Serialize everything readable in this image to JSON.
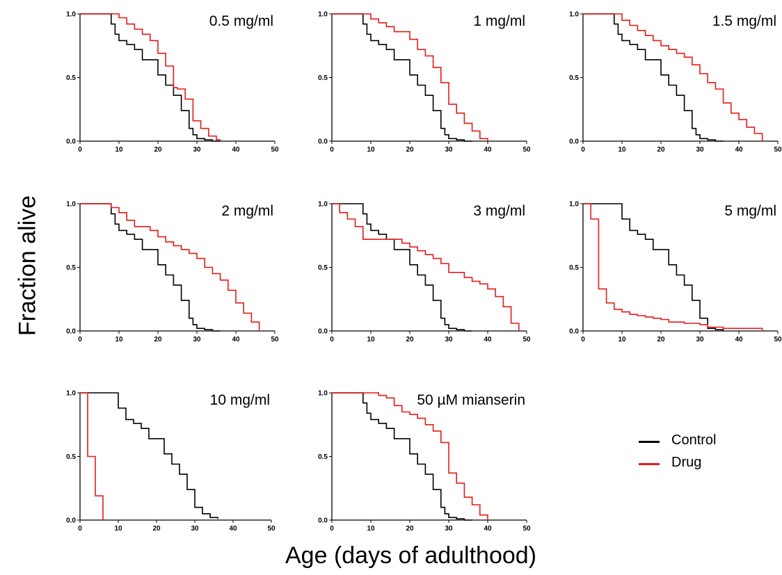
{
  "colors": {
    "control": "#000000",
    "drug": "#e41a1c"
  },
  "axes": {
    "ylabel": "Fraction alive",
    "xlabel": "Age (days of adulthood)",
    "xticks": [
      0,
      10,
      20,
      30,
      40,
      50
    ],
    "yticks": [
      "0.0",
      "0.5",
      "1.0"
    ],
    "xlim": [
      0,
      50
    ],
    "ylim": [
      0,
      1
    ]
  },
  "legend": {
    "placement": "right, beside bottom row",
    "items": [
      {
        "key": "control",
        "label": "Control"
      },
      {
        "key": "drug",
        "label": "Drug"
      }
    ]
  },
  "chart_data": [
    {
      "type": "line",
      "title": "0.5 mg/ml",
      "series": [
        {
          "name": "Control",
          "x": [
            0,
            8,
            9,
            10,
            12,
            14,
            16,
            18,
            20,
            22,
            24,
            26,
            28,
            29,
            30,
            32,
            34,
            36
          ],
          "y": [
            1.0,
            0.92,
            0.84,
            0.79,
            0.76,
            0.72,
            0.64,
            0.64,
            0.52,
            0.44,
            0.36,
            0.24,
            0.1,
            0.05,
            0.02,
            0.01,
            0.0,
            0.0
          ]
        },
        {
          "name": "Drug",
          "x": [
            0,
            10,
            12,
            14,
            16,
            18,
            20,
            22,
            24,
            25,
            27,
            29,
            31,
            33,
            35,
            36
          ],
          "y": [
            1.0,
            0.97,
            0.92,
            0.88,
            0.84,
            0.79,
            0.69,
            0.59,
            0.42,
            0.41,
            0.33,
            0.16,
            0.1,
            0.04,
            0.01,
            0.0
          ]
        }
      ]
    },
    {
      "type": "line",
      "title": "1 mg/ml",
      "series": [
        {
          "name": "Control",
          "x": [
            0,
            8,
            9,
            10,
            12,
            14,
            16,
            18,
            20,
            22,
            24,
            26,
            28,
            29,
            30,
            32,
            34,
            36
          ],
          "y": [
            1.0,
            0.92,
            0.84,
            0.79,
            0.76,
            0.72,
            0.64,
            0.64,
            0.52,
            0.44,
            0.36,
            0.24,
            0.1,
            0.05,
            0.02,
            0.01,
            0.0,
            0.0
          ]
        },
        {
          "name": "Drug",
          "x": [
            0,
            10,
            12,
            14,
            16,
            18,
            20,
            22,
            24,
            26,
            28,
            30,
            32,
            34,
            36,
            38,
            40
          ],
          "y": [
            1.0,
            0.96,
            0.93,
            0.9,
            0.86,
            0.86,
            0.8,
            0.72,
            0.67,
            0.58,
            0.46,
            0.29,
            0.22,
            0.14,
            0.08,
            0.02,
            0.0
          ]
        }
      ]
    },
    {
      "type": "line",
      "title": "1.5 mg/ml",
      "series": [
        {
          "name": "Control",
          "x": [
            0,
            8,
            9,
            10,
            12,
            14,
            16,
            18,
            20,
            22,
            24,
            26,
            28,
            29,
            30,
            32,
            34,
            36
          ],
          "y": [
            1.0,
            0.92,
            0.84,
            0.79,
            0.76,
            0.72,
            0.64,
            0.64,
            0.52,
            0.44,
            0.36,
            0.24,
            0.1,
            0.05,
            0.02,
            0.01,
            0.0,
            0.0
          ]
        },
        {
          "name": "Drug",
          "x": [
            0,
            10,
            12,
            14,
            16,
            18,
            20,
            22,
            24,
            26,
            28,
            30,
            32,
            34,
            36,
            38,
            40,
            42,
            44,
            46
          ],
          "y": [
            1.0,
            0.95,
            0.91,
            0.87,
            0.83,
            0.79,
            0.75,
            0.72,
            0.69,
            0.66,
            0.6,
            0.53,
            0.46,
            0.41,
            0.3,
            0.22,
            0.17,
            0.11,
            0.06,
            0.0
          ]
        }
      ]
    },
    {
      "type": "line",
      "title": "2 mg/ml",
      "series": [
        {
          "name": "Control",
          "x": [
            0,
            8,
            9,
            10,
            12,
            14,
            16,
            18,
            20,
            22,
            24,
            26,
            28,
            29,
            30,
            32,
            34,
            36
          ],
          "y": [
            1.0,
            0.92,
            0.84,
            0.79,
            0.76,
            0.72,
            0.64,
            0.64,
            0.52,
            0.44,
            0.36,
            0.24,
            0.1,
            0.05,
            0.02,
            0.01,
            0.0,
            0.0
          ]
        },
        {
          "name": "Drug",
          "x": [
            0,
            8,
            10,
            12,
            14,
            18,
            20,
            22,
            24,
            26,
            28,
            30,
            32,
            34,
            36,
            38,
            40,
            42,
            44,
            46
          ],
          "y": [
            1.0,
            0.97,
            0.93,
            0.87,
            0.82,
            0.79,
            0.74,
            0.7,
            0.67,
            0.64,
            0.61,
            0.57,
            0.5,
            0.45,
            0.4,
            0.32,
            0.22,
            0.14,
            0.07,
            0.0
          ]
        }
      ]
    },
    {
      "type": "line",
      "title": "3 mg/ml",
      "series": [
        {
          "name": "Control",
          "x": [
            0,
            8,
            9,
            10,
            12,
            14,
            16,
            18,
            20,
            22,
            24,
            26,
            28,
            29,
            30,
            32,
            34,
            36
          ],
          "y": [
            1.0,
            0.92,
            0.84,
            0.79,
            0.76,
            0.72,
            0.64,
            0.64,
            0.52,
            0.44,
            0.36,
            0.24,
            0.1,
            0.05,
            0.02,
            0.01,
            0.0,
            0.0
          ]
        },
        {
          "name": "Drug",
          "x": [
            0,
            2,
            4,
            6,
            8,
            18,
            20,
            22,
            24,
            26,
            28,
            30,
            34,
            36,
            38,
            40,
            42,
            44,
            46,
            48
          ],
          "y": [
            1.0,
            0.93,
            0.88,
            0.82,
            0.72,
            0.69,
            0.66,
            0.63,
            0.6,
            0.57,
            0.53,
            0.46,
            0.42,
            0.39,
            0.37,
            0.33,
            0.27,
            0.19,
            0.06,
            0.0
          ]
        }
      ]
    },
    {
      "type": "line",
      "title": "5 mg/ml",
      "series": [
        {
          "name": "Control",
          "x": [
            0,
            8,
            10,
            12,
            14,
            16,
            18,
            20,
            22,
            24,
            26,
            28,
            30,
            32,
            34,
            36
          ],
          "y": [
            1.0,
            1.0,
            0.88,
            0.79,
            0.76,
            0.72,
            0.64,
            0.64,
            0.52,
            0.44,
            0.36,
            0.24,
            0.1,
            0.02,
            0.01,
            0.0
          ]
        },
        {
          "name": "Drug",
          "x": [
            0,
            2,
            4,
            6,
            8,
            10,
            12,
            14,
            16,
            18,
            20,
            22,
            26,
            30,
            32,
            36,
            46
          ],
          "y": [
            1.0,
            0.88,
            0.33,
            0.22,
            0.17,
            0.15,
            0.13,
            0.12,
            0.11,
            0.1,
            0.09,
            0.07,
            0.06,
            0.05,
            0.03,
            0.02,
            0.0
          ]
        }
      ]
    },
    {
      "type": "line",
      "title": "10 mg/ml",
      "series": [
        {
          "name": "Control",
          "x": [
            0,
            8,
            10,
            12,
            14,
            16,
            18,
            20,
            22,
            24,
            26,
            28,
            30,
            32,
            34,
            36
          ],
          "y": [
            1.0,
            1.0,
            0.88,
            0.79,
            0.76,
            0.72,
            0.64,
            0.64,
            0.52,
            0.44,
            0.36,
            0.24,
            0.1,
            0.05,
            0.02,
            0.01
          ]
        },
        {
          "name": "Drug",
          "x": [
            0,
            2,
            4,
            6
          ],
          "y": [
            1.0,
            0.5,
            0.19,
            0.0
          ]
        }
      ]
    },
    {
      "type": "line",
      "title": "50 µM mianserin",
      "series": [
        {
          "name": "Control",
          "x": [
            0,
            8,
            9,
            10,
            12,
            14,
            16,
            18,
            20,
            22,
            24,
            26,
            28,
            29,
            30,
            32,
            34,
            36
          ],
          "y": [
            1.0,
            0.92,
            0.84,
            0.79,
            0.76,
            0.72,
            0.64,
            0.64,
            0.52,
            0.44,
            0.36,
            0.24,
            0.1,
            0.05,
            0.02,
            0.01,
            0.0,
            0.0
          ]
        },
        {
          "name": "Drug",
          "x": [
            0,
            12,
            14,
            16,
            18,
            20,
            22,
            24,
            26,
            28,
            30,
            32,
            34,
            36,
            38,
            40
          ],
          "y": [
            1.0,
            0.98,
            0.96,
            0.9,
            0.85,
            0.83,
            0.8,
            0.75,
            0.7,
            0.61,
            0.37,
            0.29,
            0.18,
            0.12,
            0.04,
            0.0
          ]
        }
      ]
    }
  ]
}
